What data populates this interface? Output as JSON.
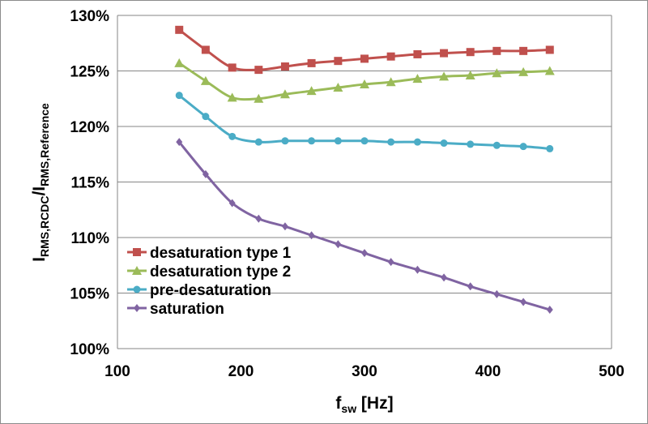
{
  "chart_data": {
    "type": "line",
    "xlabel": {
      "main": "f",
      "sub": "sw",
      "unit": " [Hz]"
    },
    "ylabel": {
      "part1": "I",
      "sub1": "RMS,RCDC",
      "sep": "/I",
      "sub2": "RMS,Reference"
    },
    "xlim": [
      100,
      500
    ],
    "ylim": [
      100,
      130
    ],
    "x_ticks": [
      100,
      200,
      300,
      400,
      500
    ],
    "x_tick_labels": [
      "100",
      "200",
      "300",
      "400",
      "500"
    ],
    "y_ticks": [
      100,
      105,
      110,
      115,
      120,
      125,
      130
    ],
    "y_tick_labels": [
      "100%",
      "105%",
      "110%",
      "115%",
      "120%",
      "125%",
      "130%"
    ],
    "grid": "horizontal",
    "legend_position": "bottom-left",
    "x": [
      150,
      171.4,
      192.9,
      214.3,
      235.7,
      257.1,
      278.6,
      300,
      321.4,
      342.9,
      364.3,
      385.7,
      407.1,
      428.6,
      450
    ],
    "series": [
      {
        "name": "desaturation type 1",
        "color": "#c0504d",
        "marker": "square",
        "values": [
          128.7,
          126.9,
          125.3,
          125.1,
          125.4,
          125.7,
          125.9,
          126.1,
          126.3,
          126.5,
          126.6,
          126.7,
          126.8,
          126.8,
          126.9
        ]
      },
      {
        "name": "desaturation type 2",
        "color": "#9bbb59",
        "marker": "triangle",
        "values": [
          125.7,
          124.1,
          122.6,
          122.5,
          122.9,
          123.2,
          123.5,
          123.8,
          124.0,
          124.3,
          124.5,
          124.6,
          124.8,
          124.9,
          125.0
        ]
      },
      {
        "name": "pre-desaturation",
        "color": "#4bacc6",
        "marker": "circle",
        "values": [
          122.8,
          120.9,
          119.1,
          118.6,
          118.7,
          118.7,
          118.7,
          118.7,
          118.6,
          118.6,
          118.5,
          118.4,
          118.3,
          118.2,
          118.0
        ]
      },
      {
        "name": "saturation",
        "color": "#8064a2",
        "marker": "diamond",
        "values": [
          118.6,
          115.7,
          113.1,
          111.7,
          111.0,
          110.2,
          109.4,
          108.6,
          107.8,
          107.1,
          106.4,
          105.6,
          104.9,
          104.2,
          103.5
        ]
      }
    ]
  }
}
